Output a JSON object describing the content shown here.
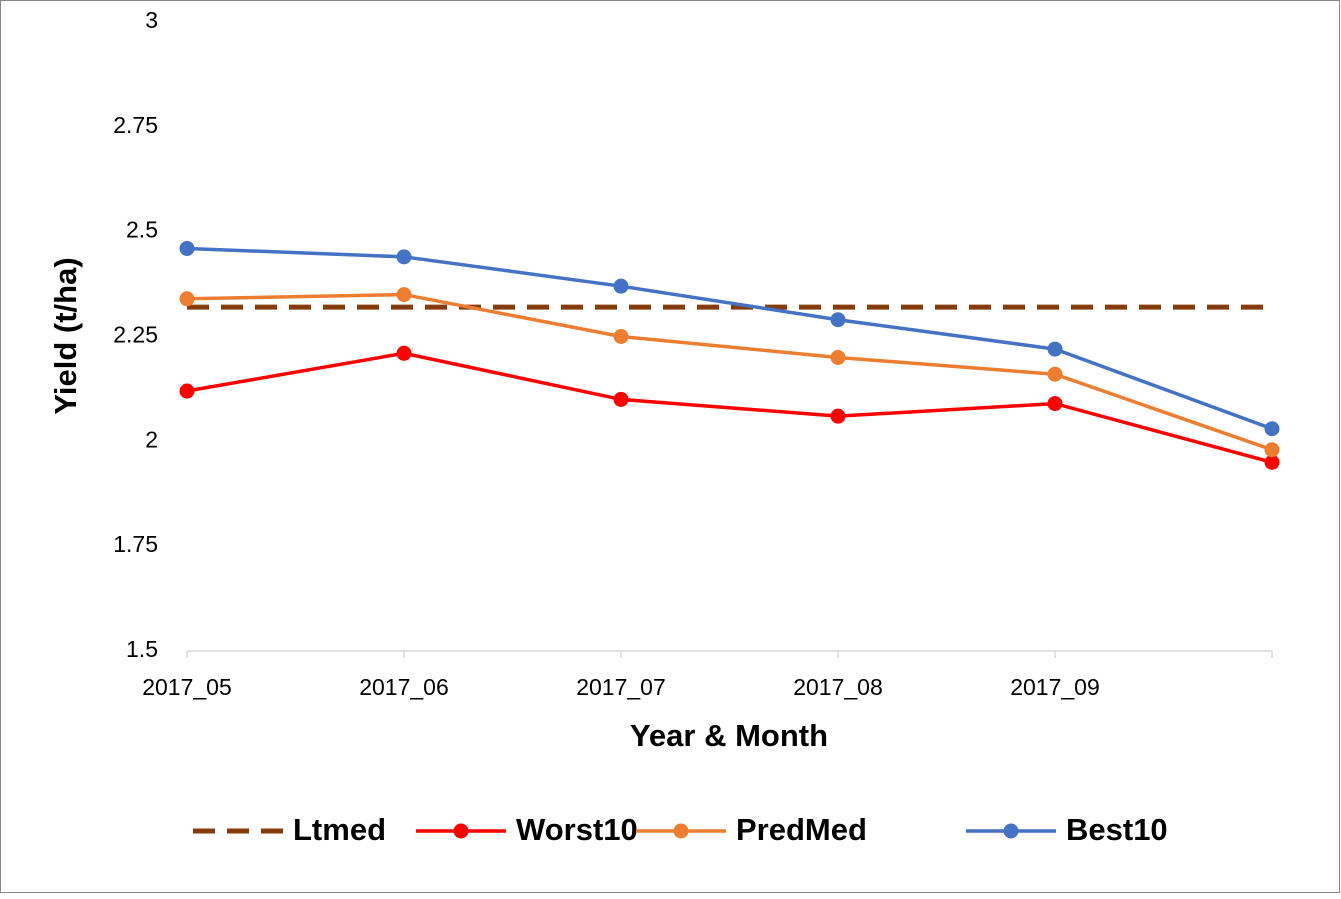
{
  "chart_data": {
    "type": "line",
    "x_label": "Year & Month",
    "y_label": "Yield (t/ha)",
    "categories": [
      "2017_05",
      "2017_06",
      "2017_07",
      "2017_08",
      "2017_09",
      null
    ],
    "series": [
      {
        "name": "Ltmed",
        "color": "#843c0c",
        "line_style": "dashed",
        "marker": false,
        "values": [
          2.32,
          2.32,
          2.32,
          2.32,
          2.32,
          2.32
        ]
      },
      {
        "name": "Worst10",
        "color": "#ff0000",
        "line_style": "solid",
        "marker": true,
        "values": [
          2.12,
          2.21,
          2.1,
          2.06,
          2.09,
          1.95
        ]
      },
      {
        "name": "PredMed",
        "color": "#ed7d31",
        "line_style": "solid",
        "marker": true,
        "values": [
          2.34,
          2.35,
          2.25,
          2.2,
          2.16,
          1.98
        ]
      },
      {
        "name": "Best10",
        "color": "#4472c4",
        "line_style": "solid",
        "marker": true,
        "values": [
          2.46,
          2.44,
          2.37,
          2.29,
          2.22,
          2.03
        ]
      }
    ],
    "ylim": [
      1.5,
      3
    ],
    "yticks": [
      1.5,
      1.75,
      2,
      2.25,
      2.5,
      2.75,
      3
    ],
    "grid": false,
    "legend": "bottom"
  }
}
